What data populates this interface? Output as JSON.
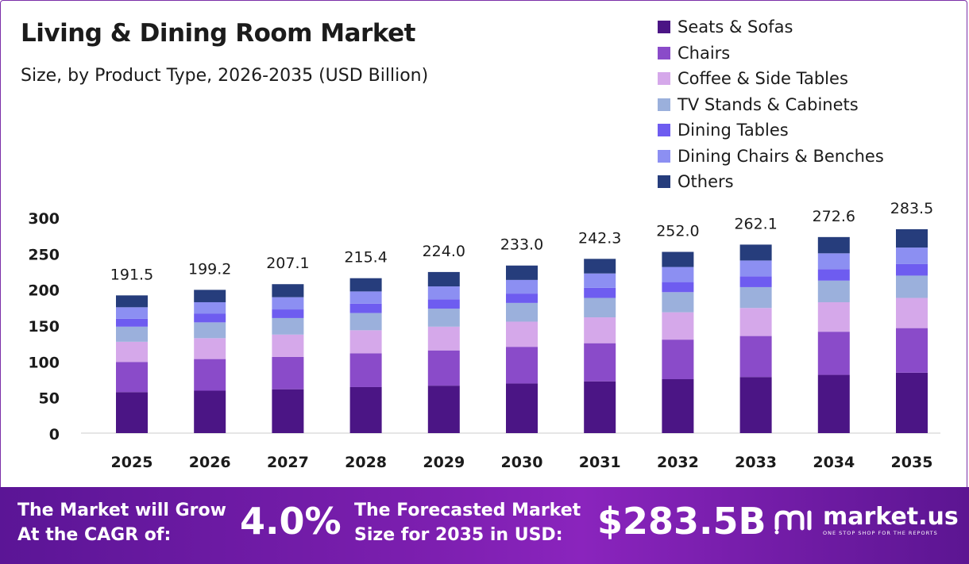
{
  "title": "Living & Dining Room Market",
  "subtitle": "Size, by Product Type, 2026-2035 (USD Billion)",
  "chart_data": {
    "type": "bar",
    "stacked": true,
    "title": "Living & Dining Room Market",
    "subtitle": "Size, by Product Type, 2026-2035 (USD Billion)",
    "categories": [
      "2025",
      "2026",
      "2027",
      "2028",
      "2029",
      "2030",
      "2031",
      "2032",
      "2033",
      "2034",
      "2035"
    ],
    "totals": [
      "191.5",
      "199.2",
      "207.1",
      "215.4",
      "224.0",
      "233.0",
      "242.3",
      "252.0",
      "262.1",
      "272.6",
      "283.5"
    ],
    "yticks": [
      "0",
      "50",
      "100",
      "150",
      "200",
      "250",
      "300"
    ],
    "ylim": [
      0,
      300
    ],
    "legend_position": "top-right",
    "series": [
      {
        "name": "Seats & Sofas",
        "color": "#4b1585",
        "values": [
          57,
          59,
          61,
          64,
          66,
          69,
          72,
          75,
          78,
          81,
          84
        ]
      },
      {
        "name": "Chairs",
        "color": "#8a4bc9",
        "values": [
          42,
          44,
          45,
          47,
          49,
          51,
          53,
          55,
          57,
          60,
          62
        ]
      },
      {
        "name": "Coffee & Side Tables",
        "color": "#d5a8ea",
        "values": [
          28,
          29,
          31,
          32,
          33,
          35,
          36,
          38,
          39,
          41,
          42
        ]
      },
      {
        "name": "TV Stands & Cabinets",
        "color": "#9bb0dc",
        "values": [
          21,
          22,
          23,
          24,
          25,
          26,
          27,
          28,
          29,
          30,
          31
        ]
      },
      {
        "name": "Dining Tables",
        "color": "#6e5cf0",
        "values": [
          11,
          12,
          12,
          13,
          13,
          13,
          14,
          14,
          15,
          16,
          16
        ]
      },
      {
        "name": "Dining Chairs & Benches",
        "color": "#8c8ff2",
        "values": [
          16,
          16,
          17,
          17,
          18,
          19,
          20,
          21,
          22,
          22,
          23
        ]
      },
      {
        "name": "Others",
        "color": "#263d7c",
        "values": [
          16.5,
          17.2,
          18.1,
          18.4,
          20.0,
          20.0,
          20.3,
          21.0,
          22.1,
          22.6,
          25.5
        ]
      }
    ]
  },
  "footer": {
    "cagr_text_line1": "The Market will Grow",
    "cagr_text_line2": "At the CAGR of:",
    "cagr_value": "4.0%",
    "forecast_text_line1": "The Forecasted Market",
    "forecast_text_line2": "Size for 2035 in USD:",
    "forecast_value": "$283.5B",
    "brand_name": "market.us",
    "brand_tagline": "ONE STOP SHOP FOR THE REPORTS"
  }
}
